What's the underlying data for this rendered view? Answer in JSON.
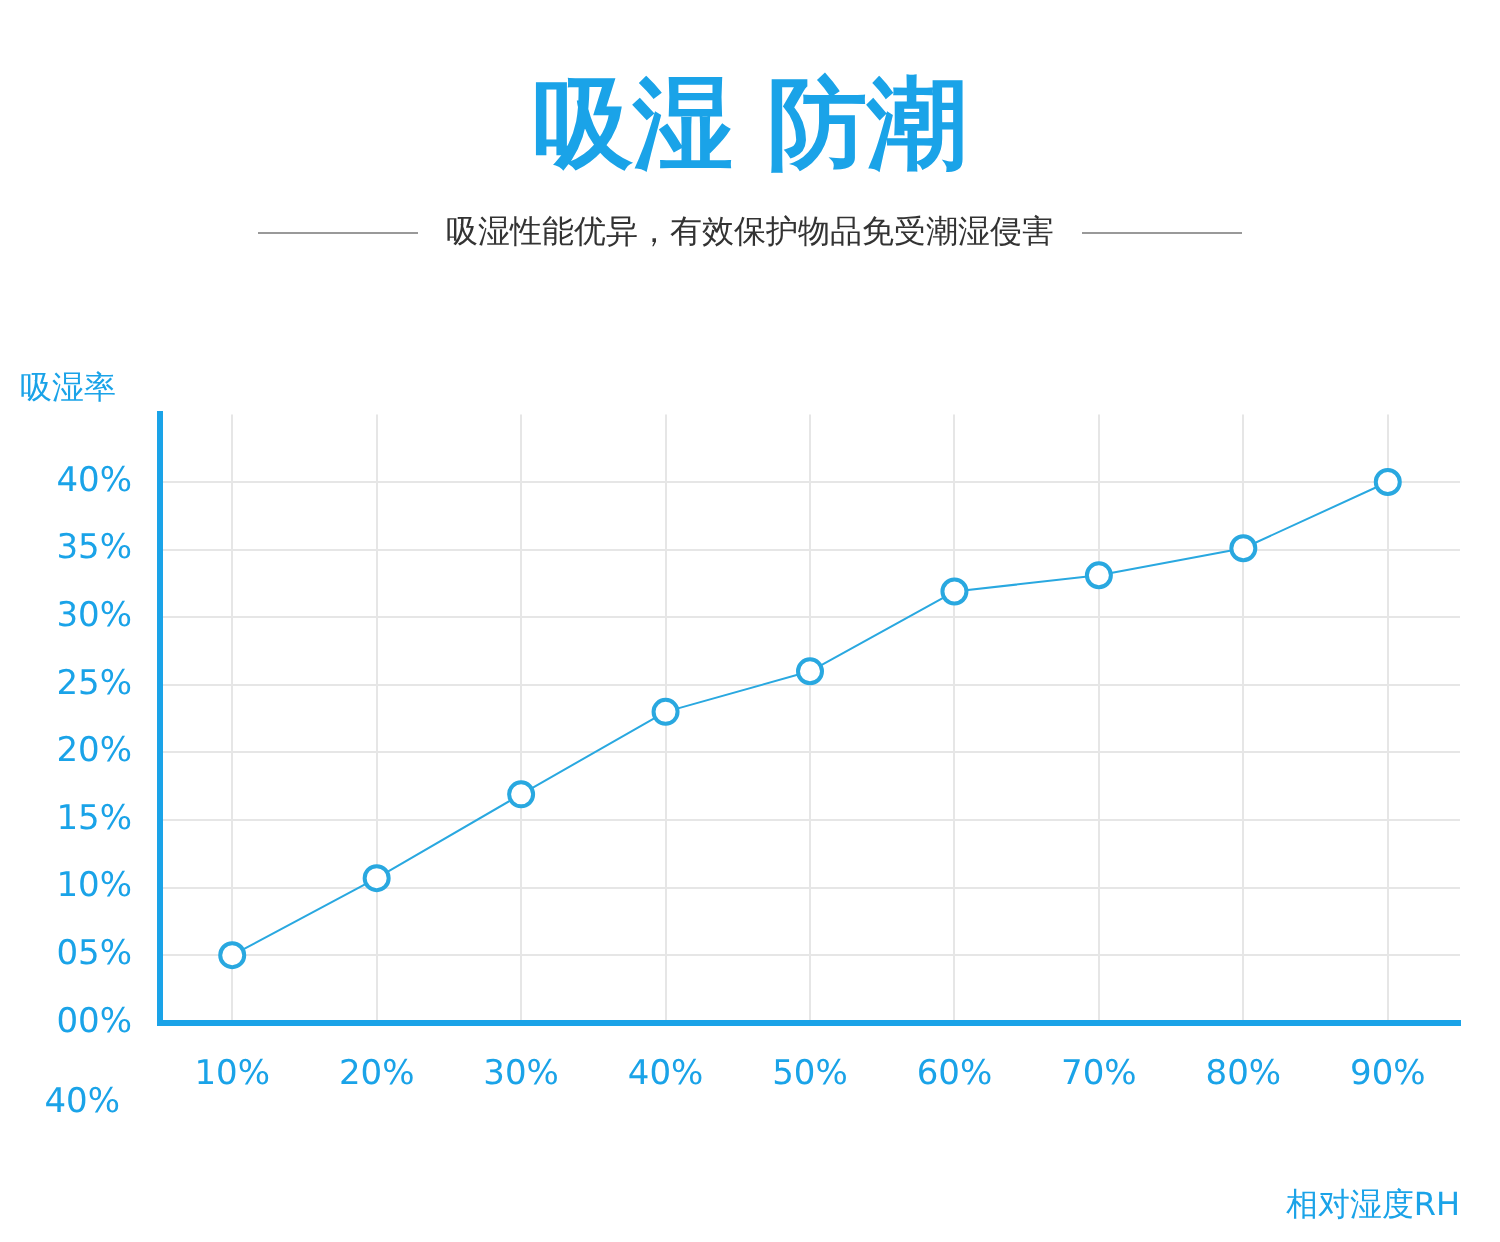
{
  "chart_data": {
    "type": "line",
    "title": "吸湿 防潮",
    "subtitle": "吸湿性能优异，有效保护物品免受潮湿侵害",
    "xlabel": "相对湿度RH",
    "ylabel": "吸湿率",
    "categories": [
      "10%",
      "20%",
      "30%",
      "40%",
      "50%",
      "60%",
      "70%",
      "80%",
      "90%"
    ],
    "series": [
      {
        "color": "#29a8e0",
        "values": [
          5.0,
          10.7,
          16.9,
          23.0,
          26.0,
          31.9,
          33.1,
          35.1,
          40.0
        ]
      }
    ],
    "ylim": [
      0,
      45
    ],
    "yticks": [
      {
        "value": 0,
        "label": "00%"
      },
      {
        "value": 5,
        "label": "05%"
      },
      {
        "value": 10,
        "label": "10%"
      },
      {
        "value": 15,
        "label": "15%"
      },
      {
        "value": 20,
        "label": "20%"
      },
      {
        "value": 25,
        "label": "25%"
      },
      {
        "value": 30,
        "label": "30%"
      },
      {
        "value": 35,
        "label": "35%"
      },
      {
        "value": 40,
        "label": "40%"
      }
    ],
    "annotations": [
      "40%"
    ],
    "grid": true,
    "legend": false,
    "marker": "circle",
    "line_style": "solid"
  }
}
